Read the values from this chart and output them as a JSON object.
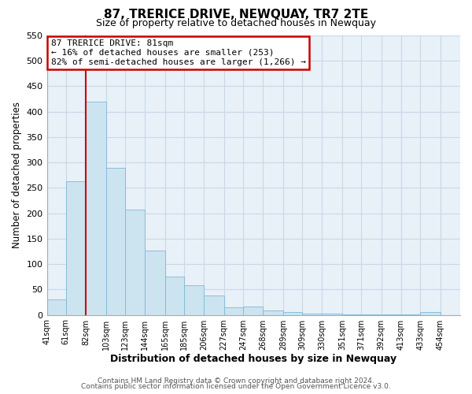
{
  "title": "87, TRERICE DRIVE, NEWQUAY, TR7 2TE",
  "subtitle": "Size of property relative to detached houses in Newquay",
  "xlabel": "Distribution of detached houses by size in Newquay",
  "ylabel": "Number of detached properties",
  "bar_left_edges": [
    41,
    61,
    82,
    103,
    123,
    144,
    165,
    185,
    206,
    227,
    247,
    268,
    289,
    309,
    330,
    351,
    371,
    392,
    413,
    433
  ],
  "bar_heights": [
    30,
    263,
    420,
    290,
    207,
    126,
    75,
    58,
    38,
    15,
    16,
    8,
    5,
    2,
    2,
    1,
    1,
    1,
    1,
    5
  ],
  "bar_widths": [
    20,
    21,
    21,
    20,
    21,
    21,
    20,
    21,
    21,
    20,
    21,
    21,
    20,
    21,
    21,
    20,
    21,
    21,
    20,
    21
  ],
  "bar_color": "#cce4f0",
  "bar_edge_color": "#7db8d8",
  "highlight_x": 82,
  "highlight_color": "#cc0000",
  "ylim": [
    0,
    550
  ],
  "yticks": [
    0,
    50,
    100,
    150,
    200,
    250,
    300,
    350,
    400,
    450,
    500,
    550
  ],
  "xtick_labels": [
    "41sqm",
    "61sqm",
    "82sqm",
    "103sqm",
    "123sqm",
    "144sqm",
    "165sqm",
    "185sqm",
    "206sqm",
    "227sqm",
    "247sqm",
    "268sqm",
    "289sqm",
    "309sqm",
    "330sqm",
    "351sqm",
    "371sqm",
    "392sqm",
    "413sqm",
    "433sqm",
    "454sqm"
  ],
  "xtick_positions": [
    41,
    61,
    82,
    103,
    123,
    144,
    165,
    185,
    206,
    227,
    247,
    268,
    289,
    309,
    330,
    351,
    371,
    392,
    413,
    433,
    454
  ],
  "annotation_title": "87 TRERICE DRIVE: 81sqm",
  "annotation_line1": "← 16% of detached houses are smaller (253)",
  "annotation_line2": "82% of semi-detached houses are larger (1,266) →",
  "footer_line1": "Contains HM Land Registry data © Crown copyright and database right 2024.",
  "footer_line2": "Contains public sector information licensed under the Open Government Licence v3.0.",
  "grid_color": "#c8d8e8",
  "background_color": "#e8f0f8"
}
